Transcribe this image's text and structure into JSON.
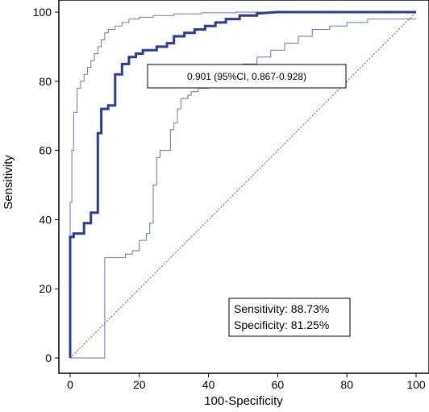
{
  "chart_data": {
    "type": "line",
    "xlabel": "100-Specificity",
    "ylabel": "Sensitivity",
    "xlim": [
      0,
      100
    ],
    "ylim": [
      0,
      100
    ],
    "xticks": [
      0,
      20,
      40,
      60,
      80,
      100
    ],
    "yticks": [
      0,
      20,
      40,
      60,
      80,
      100
    ],
    "grid": false,
    "auc_label": "0.901 (95%CI, 0.867-0.928)",
    "stats": {
      "sensitivity": "Sensitivity: 88.73%",
      "specificity": "Specificity: 81.25%"
    },
    "colors": {
      "roc": "#2b3a9e",
      "ci": "#6e72c8",
      "reference": "#b83a3a"
    },
    "series": [
      {
        "role": "roc",
        "x": [
          0,
          0,
          1,
          1,
          4,
          4,
          6,
          6,
          8,
          8,
          9,
          9,
          11,
          11,
          13,
          13,
          15,
          15,
          17,
          17,
          19,
          19,
          21,
          21,
          25,
          25,
          28,
          28,
          30,
          30,
          33,
          33,
          36,
          36,
          39,
          39,
          42,
          42,
          45,
          45,
          49,
          49,
          54,
          54,
          60,
          100
        ],
        "y": [
          0,
          35,
          35,
          36,
          36,
          39,
          39,
          42,
          42,
          65,
          65,
          72,
          72,
          73,
          73,
          82,
          82,
          85,
          85,
          87,
          87,
          88,
          88,
          89,
          89,
          90,
          90,
          91,
          91,
          93,
          93,
          94,
          94,
          95,
          95,
          96,
          96,
          97,
          97,
          98,
          98,
          99,
          99,
          99.6,
          100,
          100
        ]
      },
      {
        "role": "ci-upper",
        "x": [
          0,
          0,
          0.5,
          0.5,
          1,
          1,
          2,
          2,
          3,
          3,
          4,
          4,
          5,
          5,
          6,
          6,
          7,
          7,
          8,
          8,
          9,
          9,
          10,
          10,
          11,
          11,
          13,
          13,
          15,
          15,
          17,
          17,
          20,
          20,
          24,
          24,
          30,
          30,
          38,
          38,
          48,
          48,
          60,
          100
        ],
        "y": [
          0,
          45,
          45,
          60,
          60,
          71,
          71,
          78,
          78,
          80,
          80,
          82,
          82,
          84,
          84,
          86,
          86,
          88,
          88,
          90,
          90,
          92,
          92,
          94,
          94,
          95,
          95,
          96,
          96,
          97,
          97,
          98,
          98,
          98.5,
          98.5,
          99,
          99,
          99.5,
          99.5,
          99.8,
          99.8,
          100,
          100,
          100
        ]
      },
      {
        "role": "ci-lower",
        "x": [
          0,
          10,
          10,
          16,
          16,
          18,
          18,
          20,
          20,
          22,
          22,
          23,
          23,
          24,
          24,
          25,
          25,
          26,
          26,
          29,
          29,
          30,
          30,
          31,
          31,
          32,
          32,
          34,
          34,
          35,
          35,
          37,
          37,
          40,
          40,
          44,
          44,
          48,
          48,
          50,
          50,
          54,
          54,
          58,
          58,
          62,
          62,
          66,
          66,
          70,
          70,
          75,
          75,
          80,
          80,
          86,
          86,
          100
        ],
        "y": [
          0,
          0,
          29,
          29,
          30,
          30,
          31,
          31,
          34,
          34,
          36,
          36,
          39,
          39,
          50,
          50,
          58,
          58,
          60,
          60,
          66,
          66,
          68,
          68,
          72,
          72,
          75,
          75,
          76,
          76,
          77,
          77,
          78,
          78,
          80,
          80,
          82,
          82,
          83,
          83,
          85,
          85,
          87,
          87,
          89,
          89,
          91,
          91,
          93,
          93,
          95,
          95,
          96,
          96,
          97,
          97,
          98,
          98
        ]
      },
      {
        "role": "reference",
        "x": [
          0,
          100
        ],
        "y": [
          0,
          100
        ]
      }
    ]
  }
}
